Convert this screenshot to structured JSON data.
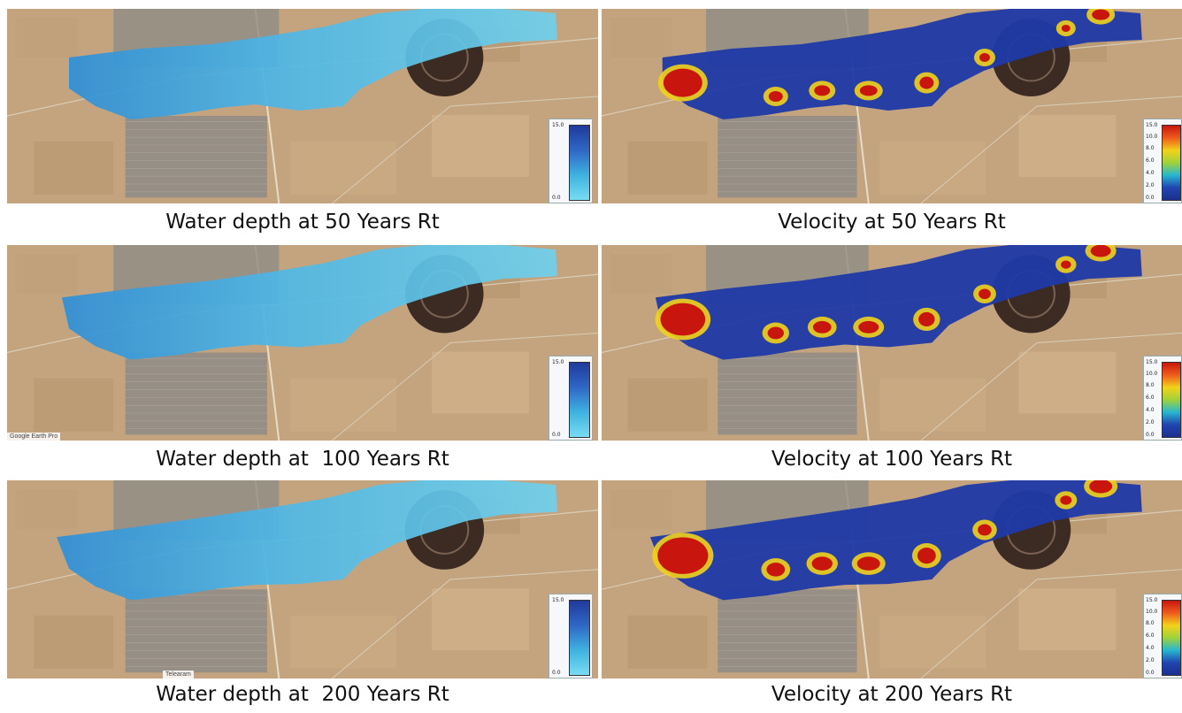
{
  "panels": [
    {
      "key": "depth_50",
      "caption": "Water depth at 50 Years Rt",
      "legend_max": "15.0",
      "legend_min": "0.0"
    },
    {
      "key": "vel_50",
      "caption": "Velocity at 50 Years Rt",
      "legend_ticks": [
        "15.0",
        "10.0",
        "8.0",
        "6.0",
        "4.0",
        "2.0",
        "0.0"
      ]
    },
    {
      "key": "depth_100",
      "caption": "Water depth at  100 Years Rt",
      "legend_max": "15.0",
      "legend_min": "0.0",
      "watermark": "Google Earth Pro"
    },
    {
      "key": "vel_100",
      "caption": "Velocity at 100 Years Rt",
      "legend_ticks": [
        "15.0",
        "10.0",
        "8.0",
        "6.0",
        "4.0",
        "2.0",
        "0.0"
      ]
    },
    {
      "key": "depth_200",
      "caption": "Water depth at  200 Years Rt",
      "legend_max": "15.0",
      "legend_min": "0.0",
      "watermark": "Telearam"
    },
    {
      "key": "vel_200",
      "caption": "Velocity at 200 Years Rt",
      "legend_ticks": [
        "15.0",
        "10.0",
        "8.0",
        "6.0",
        "4.0",
        "2.0",
        "0.0"
      ]
    }
  ],
  "colors": {
    "terrain": "#c4a47e",
    "town": "#8f8c86",
    "depth_light": "#6fd0ec",
    "depth_dark": "#2f8fd6",
    "velocity_low": "#1f3aa8",
    "velocity_high": "#c8160f",
    "velocity_mid": "#f2d21a"
  }
}
